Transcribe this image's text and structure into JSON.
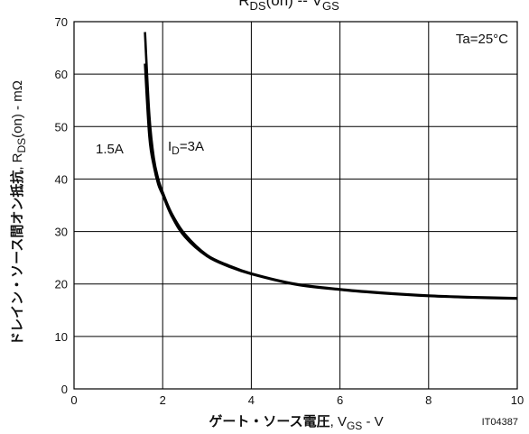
{
  "chart_data": {
    "type": "line",
    "title": "R_DS(on) -- V_GS",
    "title_parts": {
      "r": "R",
      "ds_sub": "DS",
      "on": "(on)",
      "sep": " -- ",
      "v": "V",
      "gs_sub": "GS"
    },
    "xlabel": "ゲート・ソース電圧, V_GS - V",
    "xlabel_parts": {
      "jp": "ゲート・ソース電圧",
      "comma": ", ",
      "v": "V",
      "sub": "GS",
      "unit": " - V"
    },
    "ylabel": "ドレイン・ソース間オン抵抗, R_DS(on) - mΩ",
    "ylabel_parts": {
      "jp": "ドレイン・ソース間オン抵抗",
      "comma": ", ",
      "r": "R",
      "sub": "DS",
      "on": "(on)",
      "unit": " - mΩ"
    },
    "xlim": [
      0,
      10
    ],
    "ylim": [
      0,
      70
    ],
    "x_ticks": [
      "0",
      "2",
      "4",
      "6",
      "8",
      "10"
    ],
    "y_ticks": [
      "0",
      "10",
      "20",
      "30",
      "40",
      "50",
      "60",
      "70"
    ],
    "grid": true,
    "annotations": {
      "condition": "Ta=25°C",
      "series_a": "1.5A",
      "series_b_prefix": "I",
      "series_b_sub": "D",
      "series_b_suffix": "=3A"
    },
    "figure_code": "IT04387",
    "series": [
      {
        "name": "1.5A",
        "x": [
          1.6,
          1.7,
          1.8,
          1.9,
          2.0,
          2.2,
          2.5,
          3.0,
          3.5,
          4.0,
          5.0,
          6.0,
          7.0,
          8.0,
          9.0,
          10.0
        ],
        "y": [
          68.0,
          52.0,
          44.0,
          40.0,
          37.5,
          33.5,
          29.5,
          25.5,
          23.5,
          22.0,
          20.0,
          19.0,
          18.3,
          17.8,
          17.5,
          17.3
        ]
      },
      {
        "name": "ID=3A",
        "x": [
          1.6,
          1.7,
          1.8,
          1.9,
          2.0,
          2.2,
          2.5,
          3.0,
          3.5,
          4.0,
          5.0,
          6.0,
          7.0,
          8.0,
          9.0,
          10.0
        ],
        "y": [
          62.0,
          48.0,
          42.5,
          39.0,
          37.0,
          33.0,
          29.0,
          25.3,
          23.3,
          21.9,
          19.9,
          18.9,
          18.2,
          17.7,
          17.4,
          17.2
        ]
      }
    ]
  }
}
